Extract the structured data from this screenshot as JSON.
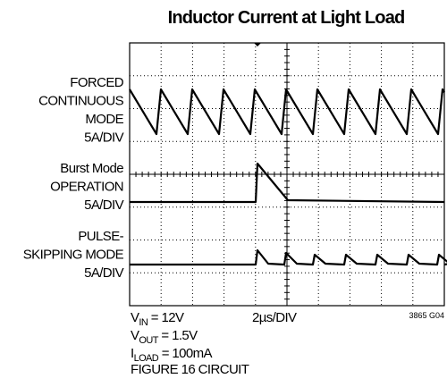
{
  "header": {
    "title": "Inductor Current at Light Load"
  },
  "traces": [
    {
      "label_lines": [
        "FORCED",
        "CONTINUOUS",
        "MODE",
        "5A/DIV"
      ]
    },
    {
      "label_lines": [
        "Burst Mode",
        "OPERATION",
        "5A/DIV"
      ]
    },
    {
      "label_lines": [
        "PULSE-",
        "SKIPPING MODE",
        "5A/DIV"
      ]
    }
  ],
  "conditions": [
    {
      "symbol": "V",
      "subscript": "IN",
      "text": " = 12V"
    },
    {
      "symbol": "V",
      "subscript": "OUT",
      "text": " = 1.5V"
    },
    {
      "symbol": "I",
      "subscript": "LOAD",
      "text": " = 100mA"
    },
    {
      "text": "FIGURE 16 CIRCUIT"
    }
  ],
  "timebase": "2µs/DIV",
  "figure_id": "3865 G04"
}
